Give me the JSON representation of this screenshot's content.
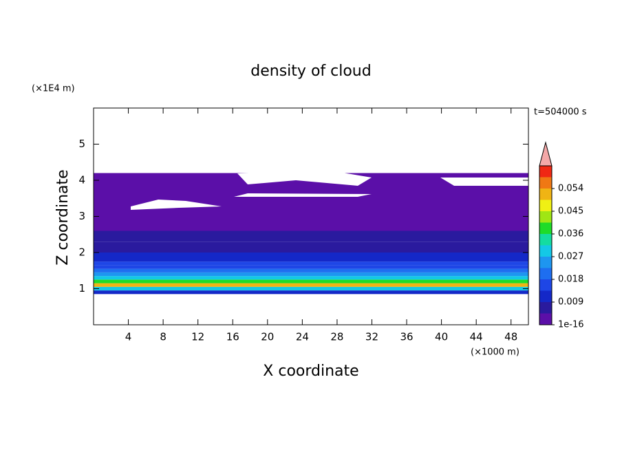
{
  "chart_data": {
    "type": "heatmap-rows",
    "title": "density of cloud",
    "subtitle": "t=504000 s",
    "x_label": "X coordinate",
    "y_label": "Z coordinate",
    "x_unit": "(×1000 m)",
    "y_unit": "(×1E4 m)",
    "xlim": [
      0,
      50
    ],
    "ylim": [
      0,
      6
    ],
    "xticks": [
      4,
      8,
      12,
      16,
      20,
      24,
      28,
      32,
      36,
      40,
      44,
      48
    ],
    "yticks": [
      1,
      2,
      3,
      4,
      5
    ],
    "z_bins": [
      0.85,
      0.95,
      1.05,
      1.15,
      1.25,
      1.35,
      1.45,
      1.55,
      1.65,
      1.75,
      2.0,
      2.3,
      2.6,
      3.0,
      4.2
    ],
    "values": [
      0.012,
      0.03,
      0.05,
      0.04,
      0.03,
      0.025,
      0.02,
      0.017,
      0.014,
      0.01,
      0.008,
      0.006,
      0.004,
      0.001
    ],
    "clim": [
      0,
      0.063
    ],
    "cticks": [
      1e-16,
      0.009,
      0.018,
      0.027,
      0.036,
      0.045,
      0.054
    ],
    "colors": [
      "#5b0fa8",
      "#2a1a9e",
      "#1428c8",
      "#1e46e6",
      "#1e6ef0",
      "#1e96f0",
      "#14c8e6",
      "#14dca0",
      "#1edc28",
      "#a0e614",
      "#f0f014",
      "#f0b414",
      "#f07814",
      "#f02814"
    ],
    "over_color": "#f4a8a8"
  }
}
